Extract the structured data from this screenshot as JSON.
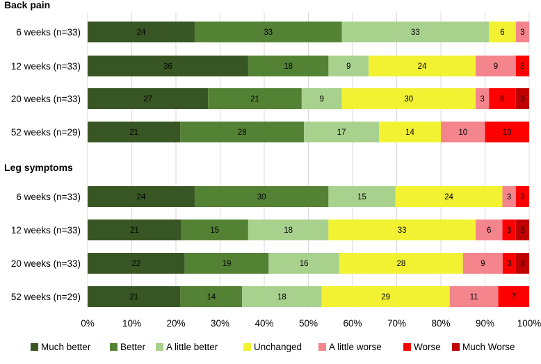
{
  "chart_data": {
    "type": "bar",
    "orientation": "horizontal",
    "stacked": true,
    "xlim": [
      0,
      100
    ],
    "xticks": [
      "0%",
      "10%",
      "20%",
      "30%",
      "40%",
      "50%",
      "60%",
      "70%",
      "80%",
      "90%",
      "100%"
    ],
    "grid": true,
    "legend_position": "bottom",
    "legend": [
      {
        "name": "Much better",
        "color": "#375623"
      },
      {
        "name": "Better",
        "color": "#548235"
      },
      {
        "name": "A little better",
        "color": "#A9D18E"
      },
      {
        "name": "Unchanged",
        "color": "#F2F233"
      },
      {
        "name": "A little worse",
        "color": "#F4858C"
      },
      {
        "name": "Worse",
        "color": "#FF0000"
      },
      {
        "name": "Much Worse",
        "color": "#C00000"
      }
    ],
    "panels": [
      {
        "title": "Back pain",
        "rows": [
          {
            "label": "6 weeks (n=33)",
            "values": [
              24,
              33,
              33,
              6,
              3,
              0,
              0
            ]
          },
          {
            "label": "12 weeks (n=33)",
            "values": [
              36,
              18,
              9,
              24,
              9,
              3,
              0
            ]
          },
          {
            "label": "20 weeks (n=33)",
            "values": [
              27,
              21,
              9,
              30,
              3,
              6,
              3
            ]
          },
          {
            "label": "52 weeks (n=29)",
            "values": [
              21,
              28,
              17,
              14,
              10,
              10,
              0
            ]
          }
        ]
      },
      {
        "title": "Leg symptoms",
        "rows": [
          {
            "label": "6 weeks (n=33)",
            "values": [
              24,
              30,
              15,
              24,
              3,
              3,
              0
            ]
          },
          {
            "label": "12 weeks (n=33)",
            "values": [
              21,
              15,
              18,
              33,
              6,
              3,
              3
            ]
          },
          {
            "label": "20 weeks (n=33)",
            "values": [
              22,
              19,
              16,
              28,
              9,
              3,
              3
            ]
          },
          {
            "label": "52 weeks (n=29)",
            "values": [
              21,
              14,
              18,
              29,
              11,
              7,
              0
            ]
          }
        ]
      }
    ]
  }
}
